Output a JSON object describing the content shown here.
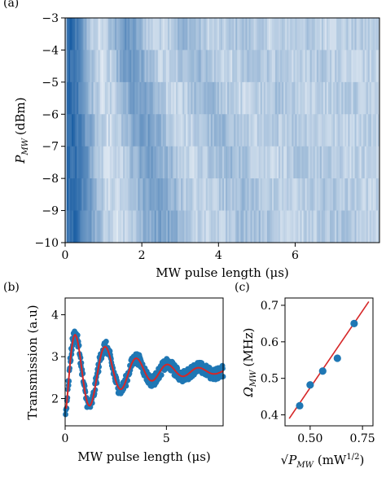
{
  "figure": {
    "panel_a_label": "(a)",
    "panel_b_label": "(b)",
    "panel_c_label": "(c)"
  },
  "chart_data": [
    {
      "panel": "a",
      "type": "heatmap",
      "xlabel": "MW pulse length (μs)",
      "ylabel_main": "P",
      "ylabel_sub": "MW",
      "ylabel_unit": "(dBm)",
      "xlim": [
        0,
        8.2
      ],
      "ylim": [
        -10,
        -3
      ],
      "xticks": [
        0,
        2,
        4,
        6
      ],
      "xtick_labels": [
        "0",
        "2",
        "4",
        "6"
      ],
      "yticks": [
        -3,
        -4,
        -5,
        -6,
        -7,
        -8,
        -9,
        -10
      ],
      "ytick_labels": [
        "−3",
        "−4",
        "−5",
        "−6",
        "−7",
        "−8",
        "−9",
        "−10"
      ],
      "rows": [
        {
          "power_dBm": -3,
          "rabi_MHz": 0.66,
          "decay_us": 2.4
        },
        {
          "power_dBm": -4,
          "rabi_MHz": 0.61,
          "decay_us": 2.5
        },
        {
          "power_dBm": -5,
          "rabi_MHz": 0.56,
          "decay_us": 2.6
        },
        {
          "power_dBm": -6,
          "rabi_MHz": 0.51,
          "decay_us": 2.7
        },
        {
          "power_dBm": -7,
          "rabi_MHz": 0.48,
          "decay_us": 2.8
        },
        {
          "power_dBm": -8,
          "rabi_MHz": 0.45,
          "decay_us": 2.9
        },
        {
          "power_dBm": -9,
          "rabi_MHz": 0.43,
          "decay_us": 3.0
        }
      ],
      "colormap": [
        "#ffffff",
        "#08519c"
      ]
    },
    {
      "panel": "b",
      "type": "line",
      "xlabel": "MW pulse length (μs)",
      "ylabel": "Transmission (a.u)",
      "xlim": [
        0,
        7.8
      ],
      "ylim": [
        1.35,
        4.4
      ],
      "xticks": [
        0,
        5
      ],
      "xtick_labels": [
        "0",
        "5"
      ],
      "yticks": [
        2,
        3,
        4
      ],
      "ytick_labels": [
        "2",
        "3",
        "4"
      ],
      "series": [
        {
          "kind": "data",
          "color": "#1f77b4"
        },
        {
          "kind": "fit",
          "color": "#d62728"
        }
      ],
      "fit": {
        "offset": 2.65,
        "amplitude": 1.35,
        "freq_MHz": 0.65,
        "decay_us": 2.4,
        "rise_us": 0.18
      }
    },
    {
      "panel": "c",
      "type": "scatter",
      "xlabel_main": "√P",
      "xlabel_sub": "MW",
      "xlabel_unit": "(mW",
      "xlabel_exp": "1/2",
      "xlabel_close": ")",
      "ylabel_main": "Ω",
      "ylabel_sub": "MW",
      "ylabel_unit": "(MHz)",
      "xlim": [
        0.38,
        0.8
      ],
      "ylim": [
        0.37,
        0.72
      ],
      "xticks": [
        0.5,
        0.75
      ],
      "xtick_labels": [
        "0.50",
        "0.75"
      ],
      "yticks": [
        0.4,
        0.5,
        0.6,
        0.7
      ],
      "ytick_labels": [
        "0.4",
        "0.5",
        "0.6",
        "0.7"
      ],
      "x": [
        0.45,
        0.5,
        0.56,
        0.63,
        0.71
      ],
      "y": [
        0.425,
        0.482,
        0.52,
        0.555,
        0.65
      ],
      "fit_line": {
        "x": [
          0.4,
          0.78
        ],
        "y": [
          0.39,
          0.71
        ]
      },
      "point_color": "#1f77b4",
      "line_color": "#d62728"
    }
  ]
}
